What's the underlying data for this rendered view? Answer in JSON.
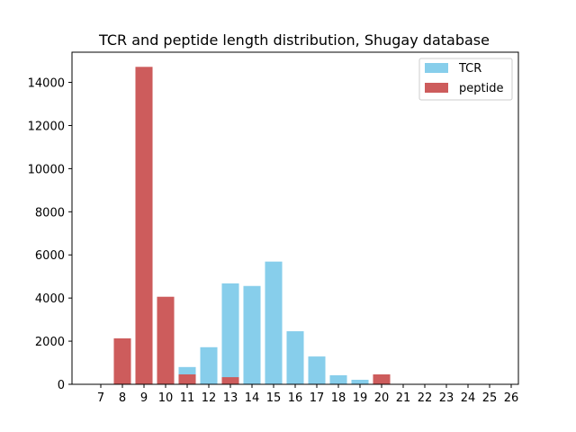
{
  "chart_data": {
    "type": "bar",
    "title": "TCR and peptide length distribution, Shugay database",
    "xlabel": "",
    "ylabel": "",
    "categories": [
      "7",
      "8",
      "9",
      "10",
      "11",
      "12",
      "13",
      "14",
      "15",
      "16",
      "17",
      "18",
      "19",
      "20",
      "21",
      "22",
      "23",
      "24",
      "25",
      "26"
    ],
    "ylim": [
      0,
      15400
    ],
    "yticks": [
      0,
      2000,
      4000,
      6000,
      8000,
      10000,
      12000,
      14000
    ],
    "grid": false,
    "legend_position": "top-right",
    "series": [
      {
        "name": "TCR",
        "color": "#87ceeb",
        "values": [
          0,
          0,
          0,
          0,
          800,
          1720,
          4680,
          4560,
          5690,
          2460,
          1290,
          420,
          210,
          0,
          0,
          0,
          0,
          0,
          0,
          0
        ]
      },
      {
        "name": "peptide",
        "color": "#cd5c5c",
        "values": [
          0,
          2130,
          14720,
          4060,
          460,
          0,
          330,
          0,
          0,
          0,
          0,
          0,
          0,
          460,
          0,
          0,
          0,
          0,
          0,
          0
        ]
      }
    ]
  }
}
